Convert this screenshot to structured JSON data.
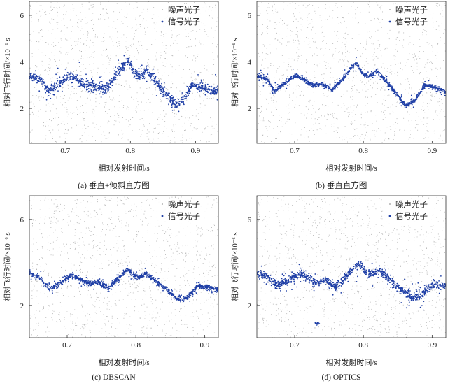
{
  "chart_data": [
    {
      "type": "scatter",
      "caption": "(a) 垂直+倾斜直方图",
      "xlabel": "相对发射时间/s",
      "ylabel": "相对飞行时间/×10⁻⁶ s",
      "xlim": [
        0.645,
        0.935
      ],
      "ylim": [
        0.5,
        6.6
      ],
      "xticks": [
        "0.7",
        "0.8",
        "0.9"
      ],
      "yticks": [
        "2",
        "4",
        "6"
      ],
      "legend_position": "top-right",
      "series": [
        {
          "name": "噪声光子",
          "color": "#9a9a9a",
          "kind": "noise"
        },
        {
          "name": "信号光子",
          "color": "#1f3fa6",
          "kind": "signal",
          "spread": 0.22,
          "trace": [
            [
              0.645,
              3.4
            ],
            [
              0.66,
              3.3
            ],
            [
              0.675,
              2.75
            ],
            [
              0.69,
              3.05
            ],
            [
              0.705,
              3.35
            ],
            [
              0.715,
              3.3
            ],
            [
              0.73,
              3.0
            ],
            [
              0.74,
              3.05
            ],
            [
              0.755,
              2.85
            ],
            [
              0.765,
              2.9
            ],
            [
              0.775,
              3.3
            ],
            [
              0.79,
              3.85
            ],
            [
              0.797,
              4.05
            ],
            [
              0.805,
              3.55
            ],
            [
              0.815,
              3.4
            ],
            [
              0.825,
              3.65
            ],
            [
              0.84,
              3.1
            ],
            [
              0.855,
              2.6
            ],
            [
              0.87,
              2.15
            ],
            [
              0.88,
              2.35
            ],
            [
              0.895,
              3.0
            ],
            [
              0.91,
              2.9
            ],
            [
              0.935,
              2.7
            ]
          ]
        }
      ]
    },
    {
      "type": "scatter",
      "caption": "(b) 垂直直方图",
      "xlabel": "相对发射时间/s",
      "ylabel": "相对飞行时间/×10⁻⁶ s",
      "xlim": [
        0.645,
        0.92
      ],
      "ylim": [
        0.5,
        6.6
      ],
      "xticks": [
        "0.7",
        "0.8",
        "0.9"
      ],
      "yticks": [
        "2",
        "4",
        "6"
      ],
      "legend_position": "top-right",
      "series": [
        {
          "name": "噪声光子",
          "color": "#9a9a9a",
          "kind": "noise"
        },
        {
          "name": "信号光子",
          "color": "#1f3fa6",
          "kind": "signal",
          "spread": 0.1,
          "trace": [
            [
              0.645,
              3.4
            ],
            [
              0.66,
              3.25
            ],
            [
              0.67,
              2.75
            ],
            [
              0.685,
              3.05
            ],
            [
              0.7,
              3.4
            ],
            [
              0.71,
              3.3
            ],
            [
              0.725,
              3.0
            ],
            [
              0.74,
              3.05
            ],
            [
              0.755,
              2.8
            ],
            [
              0.77,
              3.25
            ],
            [
              0.785,
              3.85
            ],
            [
              0.79,
              3.95
            ],
            [
              0.8,
              3.45
            ],
            [
              0.81,
              3.4
            ],
            [
              0.82,
              3.6
            ],
            [
              0.835,
              3.1
            ],
            [
              0.85,
              2.55
            ],
            [
              0.862,
              2.1
            ],
            [
              0.875,
              2.35
            ],
            [
              0.89,
              3.0
            ],
            [
              0.905,
              2.9
            ],
            [
              0.92,
              2.7
            ]
          ]
        }
      ]
    },
    {
      "type": "scatter",
      "caption": "(c) DBSCAN",
      "xlabel": "相对发射时间/s",
      "ylabel": "相对飞行时间/×10⁻⁶ s",
      "xlim": [
        0.645,
        0.92
      ],
      "ylim": [
        0.5,
        7.1
      ],
      "xticks": [
        "0.7",
        "0.8",
        "0.9"
      ],
      "yticks": [
        "2",
        "6"
      ],
      "legend_position": "top-right",
      "series": [
        {
          "name": "噪声光子",
          "color": "#9a9a9a",
          "kind": "noise"
        },
        {
          "name": "信号光子",
          "color": "#1f3fa6",
          "kind": "signal",
          "spread": 0.12,
          "trace": [
            [
              0.645,
              3.5
            ],
            [
              0.66,
              3.3
            ],
            [
              0.675,
              2.75
            ],
            [
              0.69,
              3.05
            ],
            [
              0.705,
              3.4
            ],
            [
              0.715,
              3.3
            ],
            [
              0.73,
              3.0
            ],
            [
              0.745,
              3.1
            ],
            [
              0.76,
              2.8
            ],
            [
              0.775,
              3.3
            ],
            [
              0.788,
              3.7
            ],
            [
              0.795,
              3.45
            ],
            [
              0.805,
              3.3
            ],
            [
              0.815,
              3.5
            ],
            [
              0.83,
              3.1
            ],
            [
              0.845,
              2.75
            ],
            [
              0.86,
              2.3
            ],
            [
              0.875,
              2.35
            ],
            [
              0.89,
              2.9
            ],
            [
              0.905,
              2.85
            ],
            [
              0.92,
              2.7
            ]
          ]
        }
      ]
    },
    {
      "type": "scatter",
      "caption": "(d) OPTICS",
      "xlabel": "相对发射时间/s",
      "ylabel": "相对飞行时间/×10⁻⁶ s",
      "xlim": [
        0.645,
        0.92
      ],
      "ylim": [
        0.5,
        7.1
      ],
      "xticks": [
        "0.7",
        "0.8",
        "0.9"
      ],
      "yticks": [
        "2",
        "6"
      ],
      "legend_position": "top-right",
      "series": [
        {
          "name": "噪声光子",
          "color": "#9a9a9a",
          "kind": "noise"
        },
        {
          "name": "信号光子",
          "color": "#1f3fa6",
          "kind": "signal",
          "spread": 0.2,
          "trace": [
            [
              0.645,
              3.5
            ],
            [
              0.66,
              3.35
            ],
            [
              0.675,
              2.9
            ],
            [
              0.69,
              3.15
            ],
            [
              0.705,
              3.45
            ],
            [
              0.715,
              3.35
            ],
            [
              0.73,
              3.05
            ],
            [
              0.745,
              3.15
            ],
            [
              0.76,
              2.85
            ],
            [
              0.775,
              3.35
            ],
            [
              0.79,
              3.85
            ],
            [
              0.797,
              3.9
            ],
            [
              0.805,
              3.45
            ],
            [
              0.815,
              3.5
            ],
            [
              0.825,
              3.6
            ],
            [
              0.84,
              3.15
            ],
            [
              0.855,
              2.75
            ],
            [
              0.872,
              2.3
            ],
            [
              0.885,
              2.5
            ],
            [
              0.9,
              2.95
            ],
            [
              0.92,
              2.95
            ]
          ],
          "clusters": [
            {
              "x": 0.733,
              "y": 1.15
            }
          ]
        }
      ]
    }
  ]
}
